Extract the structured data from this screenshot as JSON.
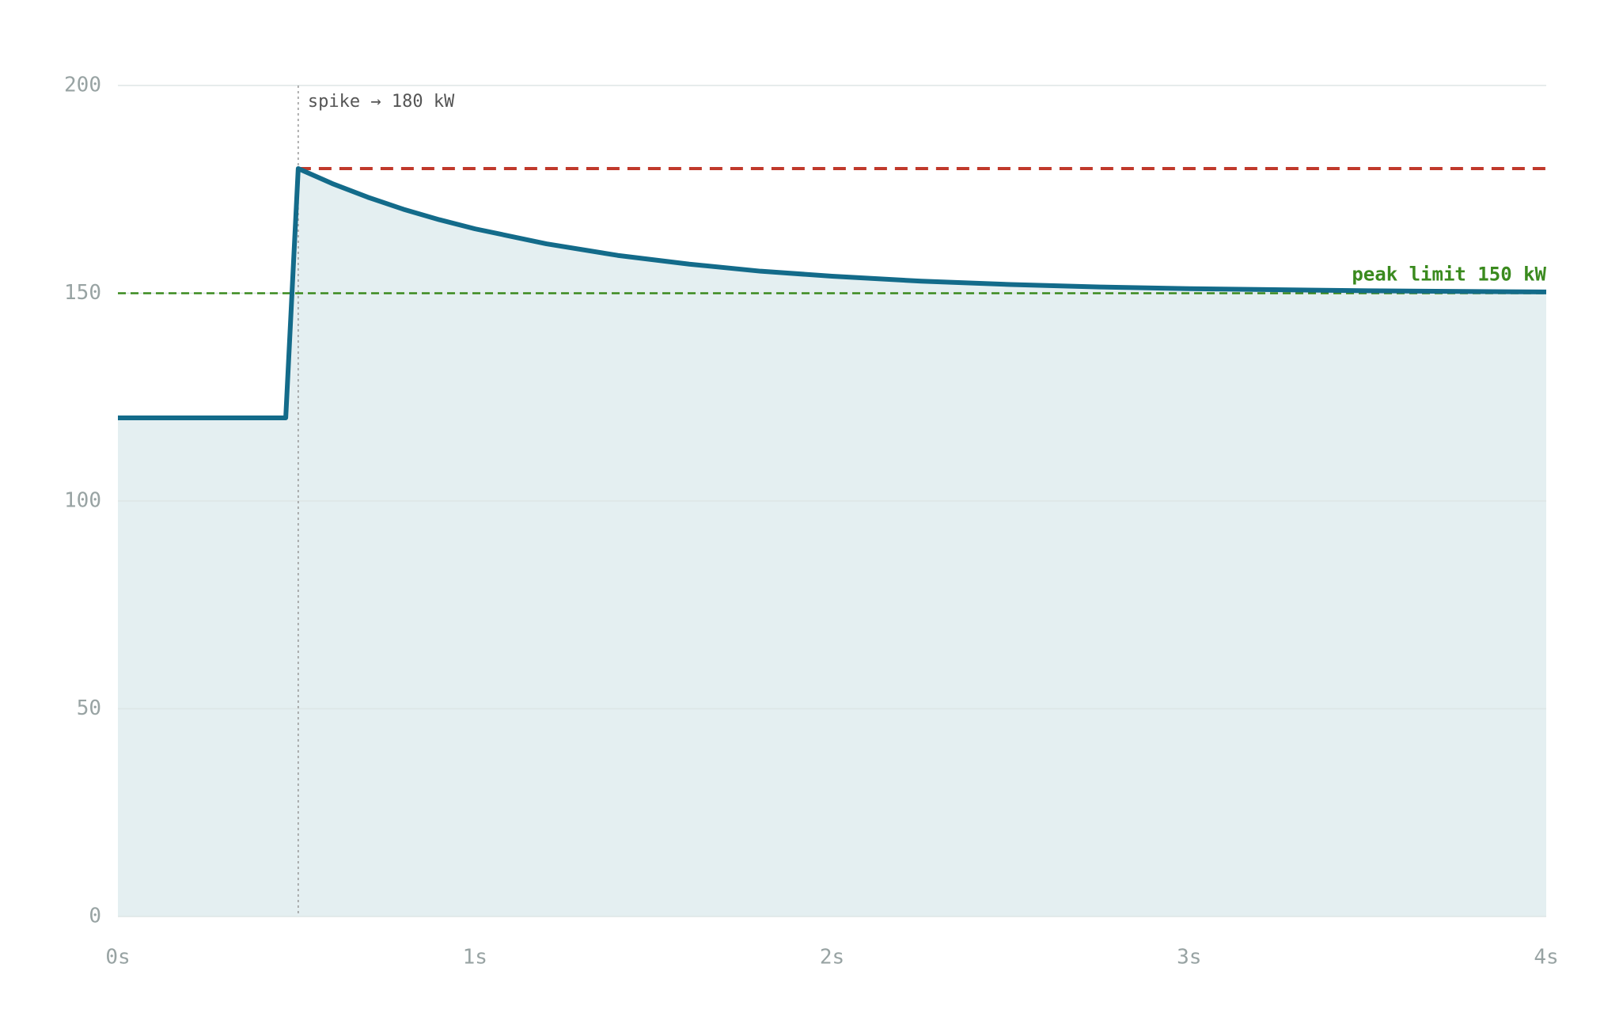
{
  "chart_data": {
    "type": "line",
    "x": [
      0,
      0.47,
      0.505,
      0.6,
      0.7,
      0.8,
      0.9,
      1.0,
      1.2,
      1.4,
      1.6,
      1.8,
      2.0,
      2.25,
      2.5,
      2.75,
      3.0,
      3.5,
      4.0
    ],
    "values": [
      120,
      120,
      180,
      176.4,
      173.1,
      170.2,
      167.7,
      165.5,
      161.9,
      159.1,
      157.0,
      155.3,
      154.1,
      152.9,
      152.1,
      151.5,
      151.1,
      150.6,
      150.3
    ],
    "color": "#136b8a",
    "fill_color": "#e4eff1",
    "xlim": [
      0,
      4
    ],
    "ylim": [
      0,
      200
    ],
    "xticks": [
      {
        "value": 0,
        "label": "0s"
      },
      {
        "value": 1,
        "label": "1s"
      },
      {
        "value": 2,
        "label": "2s"
      },
      {
        "value": 3,
        "label": "3s"
      },
      {
        "value": 4,
        "label": "4s"
      }
    ],
    "yticks": [
      0,
      50,
      100,
      150,
      200
    ],
    "grid": true,
    "reference_lines": [
      {
        "y": 180,
        "x_start": 0.505,
        "color": "#c0392b"
      },
      {
        "y": 150,
        "color": "#3a8a1e",
        "label": "peak limit 150 kW"
      }
    ],
    "vertical_annotation": {
      "x": 0.505,
      "label": "spike → 180 kW"
    }
  }
}
